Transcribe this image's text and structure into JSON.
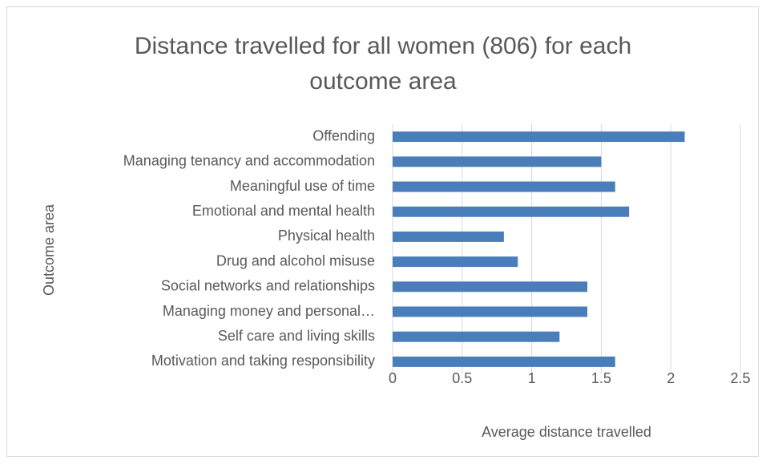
{
  "chart_data": {
    "type": "bar",
    "orientation": "horizontal",
    "title": "Distance travelled for all women (806) for each outcome area",
    "x_label": "Average distance travelled",
    "y_label": "Outcome area",
    "categories": [
      "Offending",
      "Managing tenancy and accommodation",
      "Meaningful use of time",
      "Emotional and mental health",
      "Physical health",
      "Drug and alcohol misuse",
      "Social networks and relationships",
      "Managing money and personal…",
      "Self care and living skills",
      "Motivation and taking responsibility"
    ],
    "values": [
      2.1,
      1.5,
      1.6,
      1.7,
      0.8,
      0.9,
      1.4,
      1.4,
      1.2,
      1.6
    ],
    "color": "#4a7ebb",
    "xlim": [
      0,
      2.5
    ],
    "xticks": [
      0,
      0.5,
      1,
      1.5,
      2,
      2.5
    ],
    "grid": true
  }
}
